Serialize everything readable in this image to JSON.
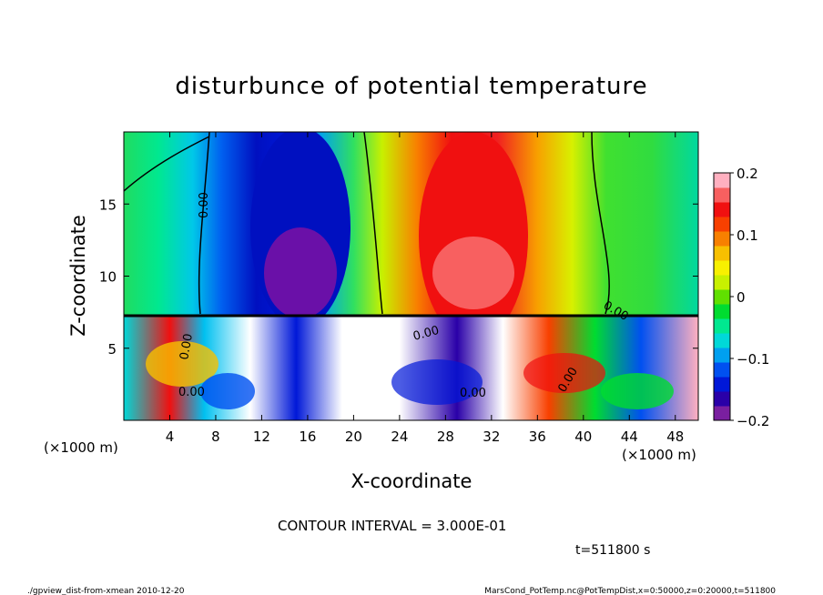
{
  "chart_data": {
    "type": "heatmap",
    "title": "disturbunce of potential temperature",
    "xlabel": "X-coordinate",
    "ylabel": "Z-coordinate",
    "x_unit_left": "(×1000 m)",
    "x_unit_right": "(×1000 m)",
    "xlim": [
      0,
      50
    ],
    "ylim": [
      0,
      20
    ],
    "x_ticks": [
      "4",
      "8",
      "12",
      "16",
      "20",
      "24",
      "28",
      "32",
      "36",
      "40",
      "44",
      "48"
    ],
    "x_tick_values": [
      4,
      8,
      12,
      16,
      20,
      24,
      28,
      32,
      36,
      40,
      44,
      48
    ],
    "y_ticks": [
      "5",
      "10",
      "15"
    ],
    "y_tick_values": [
      5,
      10,
      15
    ],
    "colorbar": {
      "min": -0.2,
      "max": 0.2,
      "tick_labels": [
        "0.2",
        "0.1",
        "0",
        "−0.1",
        "−0.2"
      ],
      "tick_values": [
        0.2,
        0.1,
        0,
        -0.1,
        -0.2
      ],
      "colors": [
        "#7a1fa0",
        "#2a00a8",
        "#0018d8",
        "#0050f0",
        "#00a0f0",
        "#00d8d8",
        "#00e890",
        "#00dc30",
        "#60e000",
        "#c8f000",
        "#f8f000",
        "#f8c000",
        "#f88000",
        "#f84000",
        "#f01010",
        "#f86060",
        "#ffb0c0"
      ]
    },
    "contour_interval_text": "CONTOUR INTERVAL = 3.000E-01",
    "time_text": "t=511800 s",
    "contour_labels": [
      "0.00",
      "0.00",
      "0.00",
      "0.00",
      "0.00",
      "0.00",
      "0.00"
    ]
  },
  "footer": {
    "left": "./gpview_dist-from-xmean  2010-12-20",
    "right": "MarsCond_PotTemp.nc@PotTempDist,x=0:50000,z=0:20000,t=511800"
  }
}
